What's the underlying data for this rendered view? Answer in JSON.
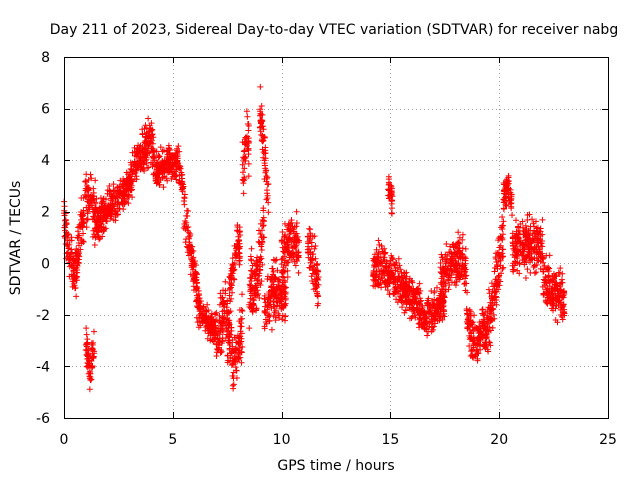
{
  "chart_data": {
    "type": "scatter",
    "title": "Day 211 of 2023, Sidereal Day-to-day VTEC variation (SDTVAR) for receiver nabg",
    "xlabel": "GPS time / hours",
    "ylabel": "SDTVAR / TECUs",
    "xlim": [
      0,
      25
    ],
    "ylim": [
      -6,
      8
    ],
    "xticks": [
      0,
      5,
      10,
      15,
      20,
      25
    ],
    "yticks": [
      -6,
      -4,
      -2,
      0,
      2,
      4,
      6,
      8
    ],
    "grid": true,
    "marker": "+",
    "series": [
      {
        "name": "SDTVAR",
        "color": "#ff0000",
        "segments": [
          {
            "t0": 0.0,
            "t1": 0.5,
            "trend": [
              [
                0.0,
                1.6
              ],
              [
                0.2,
                0.6
              ],
              [
                0.5,
                -0.5
              ]
            ],
            "spread": 1.3
          },
          {
            "t0": 0.5,
            "t1": 1.5,
            "trend": [
              [
                0.5,
                -0.5
              ],
              [
                0.8,
                1.5
              ],
              [
                1.2,
                2.8
              ],
              [
                1.5,
                1.5
              ]
            ],
            "spread": 1.6
          },
          {
            "t0": 1.0,
            "t1": 1.4,
            "trend": [
              [
                1.0,
                -3.0
              ],
              [
                1.2,
                -4.2
              ],
              [
                1.4,
                -3.0
              ]
            ],
            "spread": 1.0
          },
          {
            "t0": 1.5,
            "t1": 3.0,
            "trend": [
              [
                1.5,
                1.5
              ],
              [
                2.2,
                2.3
              ],
              [
                3.0,
                3.0
              ]
            ],
            "spread": 1.0
          },
          {
            "t0": 3.0,
            "t1": 4.2,
            "trend": [
              [
                3.0,
                3.2
              ],
              [
                3.5,
                4.2
              ],
              [
                4.0,
                4.8
              ],
              [
                4.2,
                3.9
              ]
            ],
            "spread": 1.1
          },
          {
            "t0": 4.2,
            "t1": 5.5,
            "trend": [
              [
                4.2,
                3.5
              ],
              [
                4.8,
                3.8
              ],
              [
                5.2,
                4.0
              ],
              [
                5.5,
                3.0
              ]
            ],
            "spread": 1.0
          },
          {
            "t0": 5.5,
            "t1": 6.2,
            "trend": [
              [
                5.5,
                2.0
              ],
              [
                5.8,
                0.5
              ],
              [
                6.2,
                -1.5
              ]
            ],
            "spread": 1.3
          },
          {
            "t0": 6.2,
            "t1": 7.0,
            "trend": [
              [
                6.2,
                -1.8
              ],
              [
                6.6,
                -2.3
              ],
              [
                7.0,
                -2.6
              ]
            ],
            "spread": 0.8
          },
          {
            "t0": 7.0,
            "t1": 8.2,
            "trend": [
              [
                7.0,
                -3.0
              ],
              [
                7.4,
                -2.0
              ],
              [
                7.8,
                -3.8
              ],
              [
                8.2,
                -2.5
              ]
            ],
            "spread": 1.7
          },
          {
            "t0": 7.6,
            "t1": 8.1,
            "trend": [
              [
                7.6,
                -1.0
              ],
              [
                8.0,
                1.0
              ],
              [
                8.1,
                0.5
              ]
            ],
            "spread": 1.0
          },
          {
            "t0": 8.2,
            "t1": 8.5,
            "trend": [
              [
                8.2,
                3.5
              ],
              [
                8.4,
                5.0
              ],
              [
                8.5,
                4.5
              ]
            ],
            "spread": 1.6
          },
          {
            "t0": 8.5,
            "t1": 9.2,
            "trend": [
              [
                8.5,
                -1.0
              ],
              [
                8.9,
                -0.5
              ],
              [
                9.2,
                1.5
              ]
            ],
            "spread": 1.8
          },
          {
            "t0": 9.0,
            "t1": 9.4,
            "trend": [
              [
                9.0,
                5.8
              ],
              [
                9.2,
                4.5
              ],
              [
                9.4,
                2.5
              ]
            ],
            "spread": 1.4
          },
          {
            "t0": 9.2,
            "t1": 10.2,
            "trend": [
              [
                9.2,
                -2.0
              ],
              [
                9.6,
                -1.0
              ],
              [
                10.2,
                -1.5
              ]
            ],
            "spread": 1.6
          },
          {
            "t0": 10.0,
            "t1": 10.8,
            "trend": [
              [
                10.0,
                0.0
              ],
              [
                10.4,
                1.0
              ],
              [
                10.8,
                0.5
              ]
            ],
            "spread": 1.5
          },
          {
            "t0": 11.2,
            "t1": 11.7,
            "trend": [
              [
                11.2,
                1.0
              ],
              [
                11.5,
                0.0
              ],
              [
                11.7,
                -1.0
              ]
            ],
            "spread": 1.4
          },
          {
            "t0": 14.2,
            "t1": 15.0,
            "trend": [
              [
                14.2,
                -0.5
              ],
              [
                14.6,
                0.0
              ],
              [
                15.0,
                -0.5
              ]
            ],
            "spread": 1.2
          },
          {
            "t0": 14.9,
            "t1": 15.1,
            "trend": [
              [
                14.9,
                3.0
              ],
              [
                15.1,
                2.5
              ]
            ],
            "spread": 0.8
          },
          {
            "t0": 15.0,
            "t1": 16.5,
            "trend": [
              [
                15.0,
                -0.3
              ],
              [
                15.6,
                -1.0
              ],
              [
                16.2,
                -1.5
              ],
              [
                16.5,
                -2.0
              ]
            ],
            "spread": 1.2
          },
          {
            "t0": 16.5,
            "t1": 17.5,
            "trend": [
              [
                16.5,
                -2.2
              ],
              [
                17.0,
                -1.8
              ],
              [
                17.5,
                -1.5
              ]
            ],
            "spread": 1.0
          },
          {
            "t0": 17.3,
            "t1": 18.5,
            "trend": [
              [
                17.3,
                -0.5
              ],
              [
                17.8,
                0.0
              ],
              [
                18.3,
                0.3
              ],
              [
                18.5,
                -0.5
              ]
            ],
            "spread": 1.4
          },
          {
            "t0": 18.5,
            "t1": 19.5,
            "trend": [
              [
                18.5,
                -2.0
              ],
              [
                18.9,
                -3.2
              ],
              [
                19.3,
                -2.5
              ],
              [
                19.5,
                -2.8
              ]
            ],
            "spread": 1.4
          },
          {
            "t0": 19.5,
            "t1": 20.2,
            "trend": [
              [
                19.5,
                -2.5
              ],
              [
                19.8,
                -1.0
              ],
              [
                20.2,
                1.0
              ]
            ],
            "spread": 1.5
          },
          {
            "t0": 20.2,
            "t1": 20.6,
            "trend": [
              [
                20.2,
                2.5
              ],
              [
                20.4,
                3.0
              ],
              [
                20.6,
                2.2
              ]
            ],
            "spread": 0.8
          },
          {
            "t0": 20.6,
            "t1": 22.0,
            "trend": [
              [
                20.6,
                0.5
              ],
              [
                21.3,
                0.8
              ],
              [
                22.0,
                0.5
              ]
            ],
            "spread": 1.5
          },
          {
            "t0": 22.0,
            "t1": 23.0,
            "trend": [
              [
                22.0,
                -0.5
              ],
              [
                22.5,
                -1.0
              ],
              [
                23.0,
                -1.5
              ]
            ],
            "spread": 1.3
          }
        ]
      }
    ]
  }
}
